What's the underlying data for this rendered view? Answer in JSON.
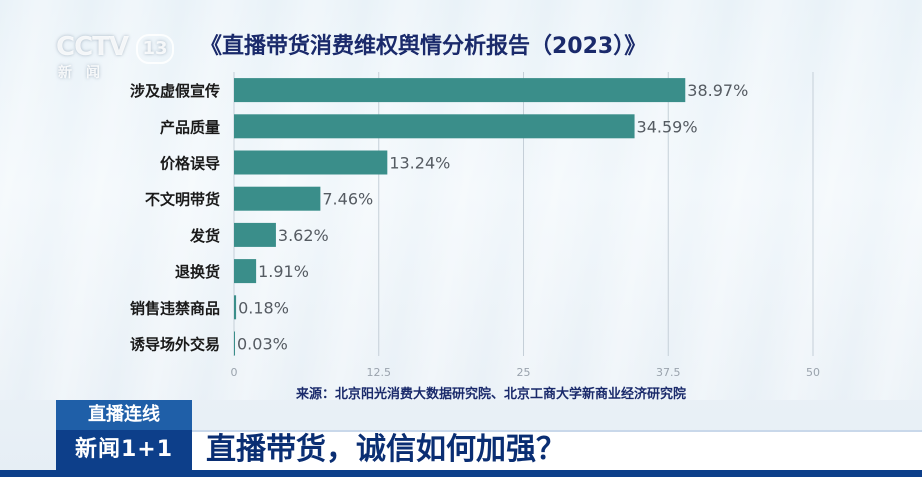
{
  "logo": {
    "main": "CCTV",
    "number": "13",
    "sub": "新闻"
  },
  "title": "《直播带货消费维权舆情分析报告（2023）》",
  "source": "来源：北京阳光消费大数据研究院、北京工商大学新商业经济研究院",
  "banner": {
    "tag": "直播连线",
    "logo_text": "新闻1+1"
  },
  "headline": "直播带货，诚信如何加强？",
  "colors": {
    "bar": "#3a8e8a",
    "title": "#1a2a6b",
    "banner": "#1f5fa8"
  },
  "chart_data": {
    "type": "bar",
    "orientation": "horizontal",
    "categories": [
      "涉及虚假宣传",
      "产品质量",
      "价格误导",
      "不文明带货",
      "发货",
      "退换货",
      "销售违禁商品",
      "诱导场外交易"
    ],
    "values": [
      38.97,
      34.59,
      13.24,
      7.46,
      3.62,
      1.91,
      0.18,
      0.03
    ],
    "value_labels": [
      "38.97%",
      "34.59%",
      "13.24%",
      "7.46%",
      "3.62%",
      "1.91%",
      "0.18%",
      "0.03%"
    ],
    "xlim": [
      0,
      50
    ],
    "xticks": [
      "0",
      "12.5",
      "25",
      "37.5",
      "50"
    ],
    "grid": true
  }
}
